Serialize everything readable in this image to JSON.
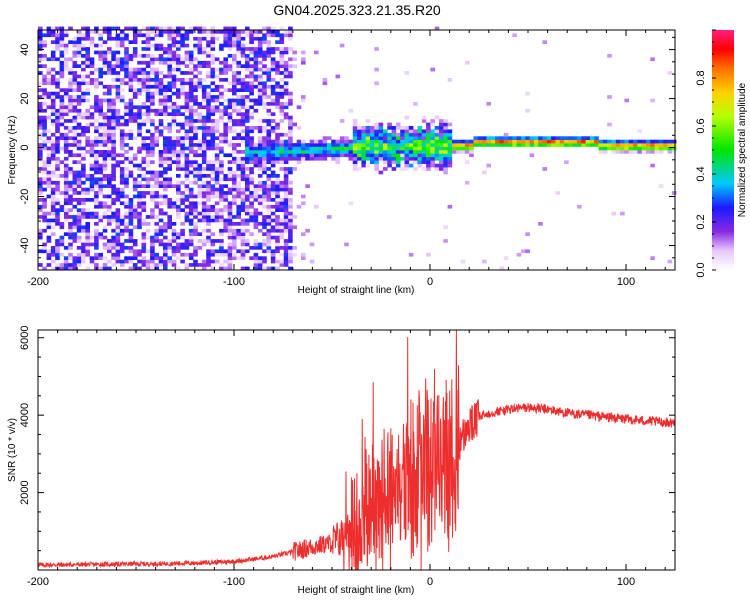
{
  "title": "GN04.2025.323.21.35.R20",
  "chart_data": [
    {
      "type": "heatmap",
      "name": "spectrogram",
      "xlabel": "Height of straight line (km)",
      "ylabel": "Frequency (Hz)",
      "xlim": [
        -200,
        125
      ],
      "ylim": [
        -50,
        48
      ],
      "xticks": [
        -200,
        -100,
        0,
        100
      ],
      "yticks": [
        -40,
        -20,
        0,
        20,
        40
      ],
      "colorbar": {
        "label": "Normalized spectral amplitude",
        "range": [
          0,
          1
        ],
        "ticks": [
          0.0,
          0.2,
          0.4,
          0.6,
          0.8
        ],
        "tick_labels": [
          "0.0",
          "0.2",
          "0.4",
          "0.6",
          "0.8"
        ]
      },
      "regions": [
        {
          "name": "noise",
          "x": [
            -200,
            -72
          ],
          "freq": [
            -50,
            48
          ],
          "amplitude": [
            0.05,
            0.35
          ]
        },
        {
          "name": "weak-signal",
          "x": [
            -95,
            -40
          ],
          "freq": [
            -6,
            4
          ],
          "amplitude": [
            0.2,
            0.45
          ]
        },
        {
          "name": "scintillation",
          "x": [
            -40,
            10
          ],
          "freq": [
            -12,
            8
          ],
          "amplitude": [
            0.3,
            0.7
          ]
        },
        {
          "name": "strong-carrier",
          "x": [
            10,
            125
          ],
          "freq": [
            -2,
            3
          ],
          "amplitude": [
            0.6,
            1.0
          ]
        }
      ]
    },
    {
      "type": "line",
      "name": "snr",
      "xlabel": "Height of straight line (km)",
      "ylabel": "SNR (10 * v/v)",
      "xlim": [
        -200,
        125
      ],
      "ylim": [
        0,
        6200
      ],
      "xticks": [
        -200,
        -100,
        0,
        100
      ],
      "yticks": [
        2000,
        4000,
        6000
      ],
      "color": "#ee2d2d",
      "series": [
        {
          "name": "SNR",
          "x": [
            -200,
            -180,
            -160,
            -140,
            -120,
            -100,
            -90,
            -80,
            -70,
            -60,
            -50,
            -45,
            -40,
            -35,
            -30,
            -25,
            -20,
            -15,
            -10,
            -5,
            0,
            5,
            10,
            15,
            20,
            25,
            30,
            40,
            50,
            60,
            70,
            80,
            90,
            100,
            110,
            125
          ],
          "y": [
            130,
            140,
            150,
            160,
            180,
            220,
            280,
            350,
            470,
            600,
            700,
            850,
            1000,
            1250,
            1600,
            1900,
            2200,
            2300,
            2400,
            2500,
            2700,
            2800,
            2900,
            3300,
            3700,
            3950,
            4050,
            4150,
            4200,
            4150,
            4050,
            4000,
            3950,
            3900,
            3850,
            3800
          ]
        }
      ]
    }
  ]
}
